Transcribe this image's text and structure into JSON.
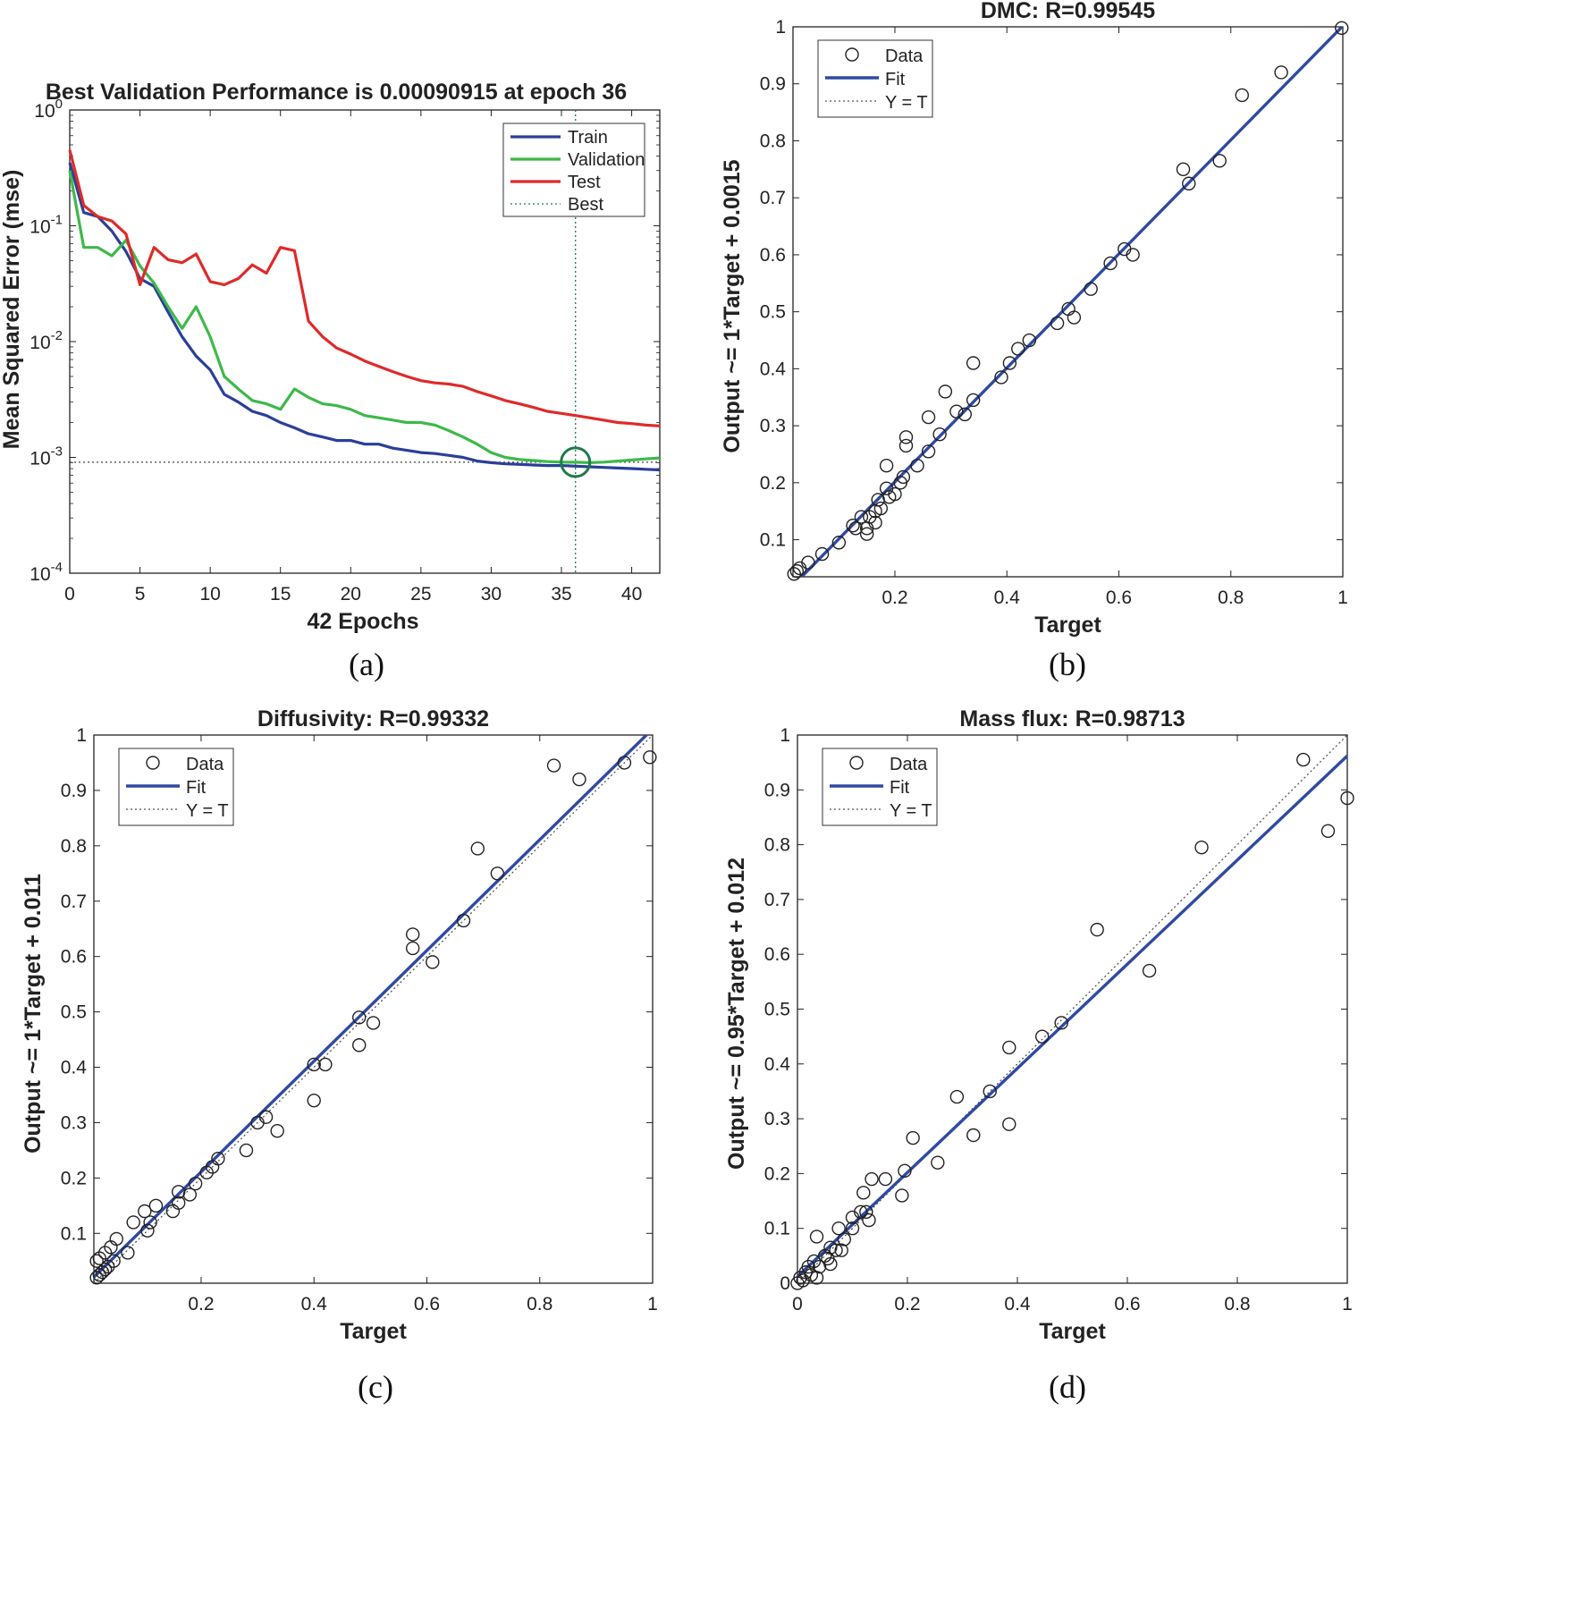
{
  "panels": [
    {
      "caption": "(a)",
      "chart_data": {
        "type": "line",
        "title": "Best Validation Performance is 0.00090915 at epoch 36",
        "xlabel": "42 Epochs",
        "ylabel": "Mean Squared Error  (mse)",
        "yscale": "log",
        "xlim": [
          0,
          42
        ],
        "ylim": [
          0.0001,
          1
        ],
        "xticks": [
          0,
          5,
          10,
          15,
          20,
          25,
          30,
          35,
          40
        ],
        "yticks": [
          {
            "value": 1,
            "base": "10",
            "exp": "0"
          },
          {
            "value": 0.1,
            "base": "10",
            "exp": "-1"
          },
          {
            "value": 0.01,
            "base": "10",
            "exp": "-2"
          },
          {
            "value": 0.001,
            "base": "10",
            "exp": "-3"
          },
          {
            "value": 0.0001,
            "base": "10",
            "exp": "-4"
          }
        ],
        "legend_position": "top-right",
        "best": {
          "epoch": 36,
          "mse": 0.00090915,
          "label": "Best",
          "color": "#1f7a4a"
        },
        "series": [
          {
            "name": "Train",
            "color": "#2b3f98",
            "x": [
              0,
              1,
              2,
              3,
              4,
              5,
              6,
              7,
              8,
              9,
              10,
              11,
              12,
              13,
              14,
              15,
              16,
              17,
              18,
              19,
              20,
              21,
              22,
              23,
              24,
              25,
              26,
              27,
              28,
              29,
              30,
              31,
              32,
              33,
              34,
              35,
              36,
              37,
              38,
              39,
              40,
              41,
              42
            ],
            "y": [
              0.35,
              0.13,
              0.12,
              0.09,
              0.06,
              0.035,
              0.03,
              0.018,
              0.011,
              0.0075,
              0.0057,
              0.0035,
              0.003,
              0.0025,
              0.0023,
              0.002,
              0.0018,
              0.0016,
              0.0015,
              0.0014,
              0.0014,
              0.0013,
              0.0013,
              0.0012,
              0.00115,
              0.0011,
              0.00108,
              0.00104,
              0.001,
              0.00093,
              0.0009,
              0.00088,
              0.00087,
              0.00086,
              0.00085,
              0.00085,
              0.00084,
              0.00083,
              0.00082,
              0.00081,
              0.0008,
              0.00079,
              0.00078
            ]
          },
          {
            "name": "Validation",
            "color": "#3db94a",
            "x": [
              0,
              1,
              2,
              3,
              4,
              5,
              6,
              7,
              8,
              9,
              10,
              11,
              12,
              13,
              14,
              15,
              16,
              17,
              18,
              19,
              20,
              21,
              22,
              23,
              24,
              25,
              26,
              27,
              28,
              29,
              30,
              31,
              32,
              33,
              34,
              35,
              36,
              37,
              38,
              39,
              40,
              41,
              42
            ],
            "y": [
              0.3,
              0.065,
              0.065,
              0.055,
              0.075,
              0.045,
              0.032,
              0.02,
              0.013,
              0.02,
              0.011,
              0.005,
              0.0039,
              0.0031,
              0.0029,
              0.0026,
              0.0039,
              0.0033,
              0.0029,
              0.0028,
              0.0026,
              0.0023,
              0.0022,
              0.0021,
              0.002,
              0.002,
              0.0019,
              0.0017,
              0.0015,
              0.0013,
              0.0011,
              0.001,
              0.00096,
              0.00094,
              0.00092,
              0.00091,
              0.00090915,
              0.0009,
              0.00091,
              0.00093,
              0.00095,
              0.00097,
              0.00099
            ]
          },
          {
            "name": "Test",
            "color": "#df2a2a",
            "x": [
              0,
              1,
              2,
              3,
              4,
              5,
              6,
              7,
              8,
              9,
              10,
              11,
              12,
              13,
              14,
              15,
              16,
              17,
              18,
              19,
              20,
              21,
              22,
              23,
              24,
              25,
              26,
              27,
              28,
              29,
              30,
              31,
              32,
              33,
              34,
              35,
              36,
              37,
              38,
              39,
              40,
              41,
              42
            ],
            "y": [
              0.45,
              0.15,
              0.12,
              0.11,
              0.085,
              0.031,
              0.065,
              0.051,
              0.048,
              0.057,
              0.033,
              0.031,
              0.035,
              0.046,
              0.039,
              0.065,
              0.061,
              0.015,
              0.011,
              0.0088,
              0.0078,
              0.0068,
              0.0061,
              0.0055,
              0.005,
              0.0046,
              0.0044,
              0.0043,
              0.0041,
              0.0037,
              0.0034,
              0.0031,
              0.0029,
              0.0027,
              0.0025,
              0.0024,
              0.0023,
              0.0022,
              0.0021,
              0.002,
              0.00196,
              0.0019,
              0.00187
            ]
          }
        ]
      }
    },
    {
      "caption": "(b)",
      "chart_data": {
        "type": "scatter",
        "title": "DMC: R=0.99545",
        "xlabel": "Target",
        "ylabel": "Output ~= 1*Target + 0.0015",
        "xlim": [
          0.018,
          1
        ],
        "ylim": [
          0.035,
          1
        ],
        "xticks": [
          0.2,
          0.4,
          0.6,
          0.8,
          1
        ],
        "xticklabels": [
          "0.2",
          "0.4",
          "0.6",
          "0.8",
          "1"
        ],
        "yticks": [
          0.1,
          0.2,
          0.3,
          0.4,
          0.5,
          0.6,
          0.7,
          0.8,
          0.9,
          1
        ],
        "yticklabels": [
          "0.1",
          "0.2",
          "0.3",
          "0.4",
          "0.5",
          "0.6",
          "0.7",
          "0.8",
          "0.9",
          "1"
        ],
        "fit": {
          "slope": 1,
          "intercept": 0.0015
        },
        "legend_position": "top-left",
        "legend": [
          "Data",
          "Fit",
          "Y = T"
        ],
        "colors": {
          "fit": "#2e4aa3",
          "data": "#222222",
          "identity": "#555555"
        },
        "points": [
          [
            0.02,
            0.04
          ],
          [
            0.025,
            0.045
          ],
          [
            0.03,
            0.05
          ],
          [
            0.045,
            0.06
          ],
          [
            0.07,
            0.075
          ],
          [
            0.1,
            0.095
          ],
          [
            0.125,
            0.125
          ],
          [
            0.13,
            0.12
          ],
          [
            0.14,
            0.14
          ],
          [
            0.15,
            0.12
          ],
          [
            0.15,
            0.11
          ],
          [
            0.155,
            0.14
          ],
          [
            0.165,
            0.15
          ],
          [
            0.165,
            0.13
          ],
          [
            0.17,
            0.17
          ],
          [
            0.175,
            0.155
          ],
          [
            0.185,
            0.23
          ],
          [
            0.185,
            0.19
          ],
          [
            0.19,
            0.175
          ],
          [
            0.2,
            0.18
          ],
          [
            0.21,
            0.2
          ],
          [
            0.215,
            0.21
          ],
          [
            0.22,
            0.28
          ],
          [
            0.22,
            0.265
          ],
          [
            0.24,
            0.23
          ],
          [
            0.26,
            0.255
          ],
          [
            0.26,
            0.315
          ],
          [
            0.28,
            0.285
          ],
          [
            0.29,
            0.36
          ],
          [
            0.31,
            0.325
          ],
          [
            0.325,
            0.32
          ],
          [
            0.34,
            0.41
          ],
          [
            0.34,
            0.345
          ],
          [
            0.39,
            0.385
          ],
          [
            0.405,
            0.41
          ],
          [
            0.42,
            0.435
          ],
          [
            0.44,
            0.45
          ],
          [
            0.49,
            0.48
          ],
          [
            0.51,
            0.505
          ],
          [
            0.52,
            0.49
          ],
          [
            0.55,
            0.54
          ],
          [
            0.585,
            0.585
          ],
          [
            0.61,
            0.61
          ],
          [
            0.625,
            0.6
          ],
          [
            0.715,
            0.75
          ],
          [
            0.725,
            0.725
          ],
          [
            0.78,
            0.765
          ],
          [
            0.82,
            0.88
          ],
          [
            0.89,
            0.92
          ],
          [
            0.998,
            0.998
          ]
        ]
      }
    },
    {
      "caption": "(c)",
      "chart_data": {
        "type": "scatter",
        "title": "Diffusivity: R=0.99332",
        "xlabel": "Target",
        "ylabel": "Output ~= 1*Target + 0.011",
        "xlim": [
          0.01,
          1
        ],
        "ylim": [
          0.01,
          1
        ],
        "xticks": [
          0.2,
          0.4,
          0.6,
          0.8,
          1
        ],
        "xticklabels": [
          "0.2",
          "0.4",
          "0.6",
          "0.8",
          "1"
        ],
        "yticks": [
          0.1,
          0.2,
          0.3,
          0.4,
          0.5,
          0.6,
          0.7,
          0.8,
          0.9,
          1
        ],
        "yticklabels": [
          "0.1",
          "0.2",
          "0.3",
          "0.4",
          "0.5",
          "0.6",
          "0.7",
          "0.8",
          "0.9",
          "1"
        ],
        "fit": {
          "slope": 1,
          "intercept": 0.011
        },
        "legend_position": "top-left",
        "legend": [
          "Data",
          "Fit",
          "Y = T"
        ],
        "colors": {
          "fit": "#2e4aa3",
          "data": "#222222",
          "identity": "#555555"
        },
        "points": [
          [
            0.015,
            0.02
          ],
          [
            0.02,
            0.025
          ],
          [
            0.025,
            0.03
          ],
          [
            0.03,
            0.035
          ],
          [
            0.035,
            0.04
          ],
          [
            0.015,
            0.05
          ],
          [
            0.02,
            0.055
          ],
          [
            0.03,
            0.065
          ],
          [
            0.04,
            0.075
          ],
          [
            0.05,
            0.09
          ],
          [
            0.045,
            0.05
          ],
          [
            0.07,
            0.065
          ],
          [
            0.08,
            0.12
          ],
          [
            0.1,
            0.14
          ],
          [
            0.105,
            0.105
          ],
          [
            0.11,
            0.12
          ],
          [
            0.12,
            0.15
          ],
          [
            0.15,
            0.14
          ],
          [
            0.16,
            0.175
          ],
          [
            0.16,
            0.155
          ],
          [
            0.18,
            0.17
          ],
          [
            0.19,
            0.19
          ],
          [
            0.21,
            0.21
          ],
          [
            0.22,
            0.22
          ],
          [
            0.23,
            0.235
          ],
          [
            0.28,
            0.25
          ],
          [
            0.3,
            0.3
          ],
          [
            0.315,
            0.31
          ],
          [
            0.335,
            0.285
          ],
          [
            0.4,
            0.34
          ],
          [
            0.4,
            0.405
          ],
          [
            0.42,
            0.405
          ],
          [
            0.48,
            0.49
          ],
          [
            0.48,
            0.44
          ],
          [
            0.505,
            0.48
          ],
          [
            0.575,
            0.64
          ],
          [
            0.575,
            0.615
          ],
          [
            0.61,
            0.59
          ],
          [
            0.665,
            0.665
          ],
          [
            0.69,
            0.795
          ],
          [
            0.725,
            0.75
          ],
          [
            0.825,
            0.945
          ],
          [
            0.87,
            0.92
          ],
          [
            0.95,
            0.95
          ],
          [
            0.995,
            0.96
          ]
        ]
      }
    },
    {
      "caption": "(d)",
      "chart_data": {
        "type": "scatter",
        "title": "Mass flux: R=0.98713",
        "xlabel": "Target",
        "ylabel": "Output ~= 0.95*Target + 0.012",
        "xlim": [
          0,
          1
        ],
        "ylim": [
          0,
          1
        ],
        "xticks": [
          0,
          0.2,
          0.4,
          0.6,
          0.8,
          1
        ],
        "xticklabels": [
          "0",
          "0.2",
          "0.4",
          "0.6",
          "0.8",
          "1"
        ],
        "yticks": [
          0,
          0.1,
          0.2,
          0.3,
          0.4,
          0.5,
          0.6,
          0.7,
          0.8,
          0.9,
          1
        ],
        "yticklabels": [
          "0",
          "0.1",
          "0.2",
          "0.3",
          "0.4",
          "0.5",
          "0.6",
          "0.7",
          "0.8",
          "0.9",
          "1"
        ],
        "fit": {
          "slope": 0.95,
          "intercept": 0.012
        },
        "legend_position": "top-left",
        "legend": [
          "Data",
          "Fit",
          "Y = T"
        ],
        "colors": {
          "fit": "#2e4aa3",
          "data": "#222222",
          "identity": "#555555"
        },
        "points": [
          [
            0.0,
            0.0
          ],
          [
            0.005,
            0.01
          ],
          [
            0.01,
            0.005
          ],
          [
            0.015,
            0.02
          ],
          [
            0.02,
            0.03
          ],
          [
            0.025,
            0.015
          ],
          [
            0.03,
            0.04
          ],
          [
            0.035,
            0.085
          ],
          [
            0.035,
            0.01
          ],
          [
            0.04,
            0.03
          ],
          [
            0.05,
            0.05
          ],
          [
            0.055,
            0.045
          ],
          [
            0.06,
            0.035
          ],
          [
            0.06,
            0.065
          ],
          [
            0.07,
            0.06
          ],
          [
            0.075,
            0.1
          ],
          [
            0.08,
            0.06
          ],
          [
            0.085,
            0.08
          ],
          [
            0.1,
            0.1
          ],
          [
            0.1,
            0.12
          ],
          [
            0.115,
            0.13
          ],
          [
            0.12,
            0.165
          ],
          [
            0.125,
            0.13
          ],
          [
            0.13,
            0.115
          ],
          [
            0.135,
            0.19
          ],
          [
            0.16,
            0.19
          ],
          [
            0.19,
            0.16
          ],
          [
            0.195,
            0.205
          ],
          [
            0.21,
            0.265
          ],
          [
            0.255,
            0.22
          ],
          [
            0.29,
            0.34
          ],
          [
            0.32,
            0.27
          ],
          [
            0.35,
            0.35
          ],
          [
            0.385,
            0.43
          ],
          [
            0.385,
            0.29
          ],
          [
            0.445,
            0.45
          ],
          [
            0.48,
            0.475
          ],
          [
            0.545,
            0.645
          ],
          [
            0.64,
            0.57
          ],
          [
            0.735,
            0.795
          ],
          [
            0.92,
            0.955
          ],
          [
            0.965,
            0.825
          ],
          [
            1.0,
            0.885
          ]
        ]
      }
    }
  ]
}
